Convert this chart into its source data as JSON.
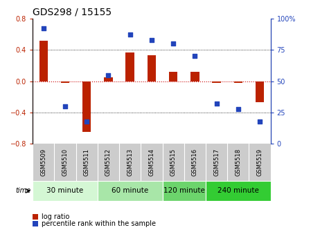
{
  "title": "GDS298 / 15155",
  "samples": [
    "GSM5509",
    "GSM5510",
    "GSM5511",
    "GSM5512",
    "GSM5513",
    "GSM5514",
    "GSM5515",
    "GSM5516",
    "GSM5517",
    "GSM5518",
    "GSM5519"
  ],
  "log_ratio": [
    0.52,
    -0.02,
    -0.65,
    0.05,
    0.37,
    0.33,
    0.12,
    0.12,
    -0.02,
    -0.02,
    -0.27
  ],
  "percentile": [
    92,
    30,
    18,
    55,
    87,
    83,
    80,
    70,
    32,
    28,
    18
  ],
  "ylim_left": [
    -0.8,
    0.8
  ],
  "ylim_right": [
    0,
    100
  ],
  "yticks_left": [
    -0.8,
    -0.4,
    0,
    0.4,
    0.8
  ],
  "yticks_right": [
    0,
    25,
    50,
    75,
    100
  ],
  "hlines": [
    -0.4,
    0.0,
    0.4
  ],
  "time_groups": [
    {
      "label": "30 minute",
      "start": 0,
      "end": 3,
      "color": "#d4f7d4"
    },
    {
      "label": "60 minute",
      "start": 3,
      "end": 6,
      "color": "#a8e6a8"
    },
    {
      "label": "120 minute",
      "start": 6,
      "end": 8,
      "color": "#6cd46c"
    },
    {
      "label": "240 minute",
      "start": 8,
      "end": 11,
      "color": "#33cc33"
    }
  ],
  "bar_color": "#bb2200",
  "dot_color": "#2244bb",
  "zero_line_color": "#cc0000",
  "bg_color": "#ffffff",
  "sample_row_color": "#cccccc",
  "legend_bar_label": "log ratio",
  "legend_dot_label": "percentile rank within the sample",
  "time_label": "time",
  "title_fontsize": 10,
  "tick_fontsize": 7,
  "sample_fontsize": 6,
  "time_fontsize": 7.5
}
